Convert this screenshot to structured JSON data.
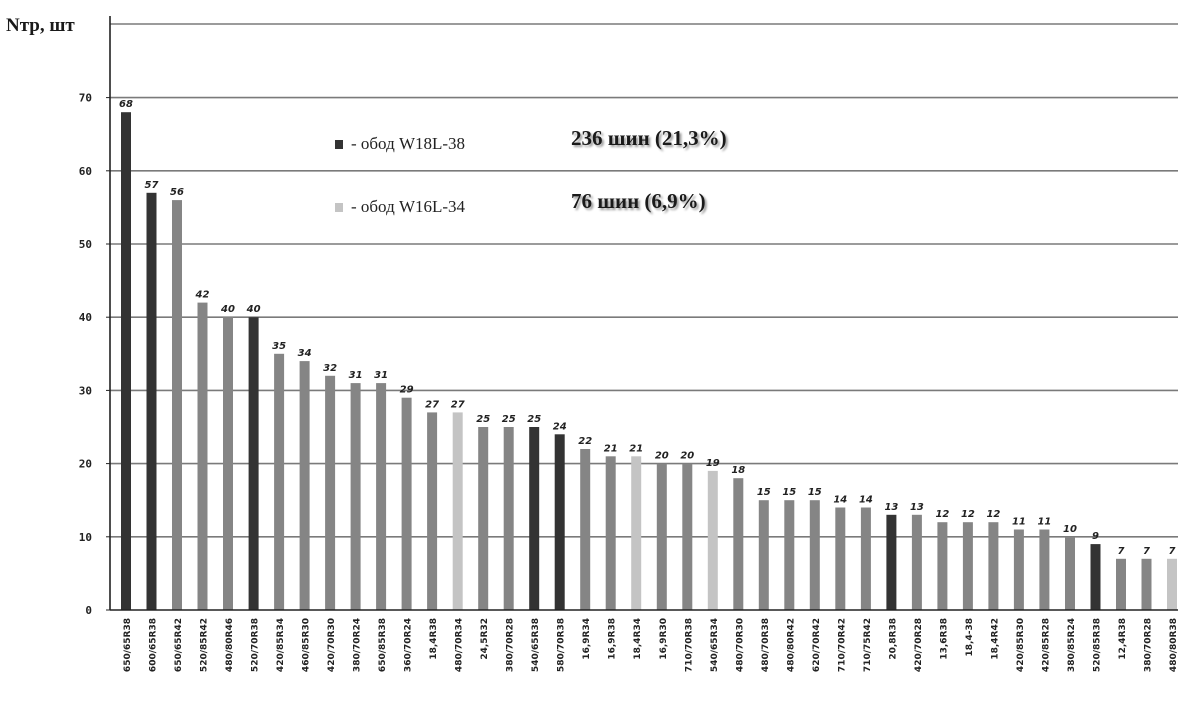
{
  "chart_data": {
    "type": "bar",
    "ylabel": "Nтр, шт",
    "ylim": [
      0,
      80
    ],
    "yticks": [
      0,
      10,
      20,
      30,
      40,
      50,
      60,
      70
    ],
    "grid": true,
    "categories": [
      "650/65R38",
      "600/65R38",
      "650/65R42",
      "520/85R42",
      "480/80R46",
      "520/70R38",
      "420/85R34",
      "460/85R30",
      "420/70R30",
      "380/70R24",
      "650/85R38",
      "360/70R24",
      "18,4R38",
      "480/70R34",
      "24,5R32",
      "380/70R28",
      "540/65R38",
      "580/70R38",
      "16,9R34",
      "16,9R38",
      "18,4R34",
      "16,9R30",
      "710/70R38",
      "540/65R34",
      "480/70R30",
      "480/70R38",
      "480/80R42",
      "620/70R42",
      "710/70R42",
      "710/75R42",
      "20,8R38",
      "420/70R28",
      "13,6R38",
      "18,4-38",
      "18,4R42",
      "420/85R30",
      "420/85R28",
      "380/85R24",
      "520/85R38",
      "12,4R38",
      "380/70R28",
      "480/80R38"
    ],
    "values": [
      68,
      57,
      56,
      42,
      40,
      40,
      35,
      34,
      32,
      31,
      31,
      29,
      27,
      27,
      25,
      25,
      25,
      24,
      22,
      21,
      21,
      20,
      20,
      19,
      18,
      15,
      15,
      15,
      14,
      14,
      13,
      13,
      12,
      12,
      12,
      11,
      11,
      10,
      9,
      7,
      7,
      7
    ],
    "rim_groups": [
      "W18L-38",
      "W18L-38",
      "other",
      "other",
      "other",
      "W18L-38",
      "other",
      "other",
      "other",
      "other",
      "other",
      "other",
      "other",
      "W16L-34",
      "other",
      "other",
      "W18L-38",
      "W18L-38",
      "other",
      "other",
      "W16L-34",
      "other",
      "other",
      "W16L-34",
      "other",
      "other",
      "other",
      "other",
      "other",
      "other",
      "W18L-38",
      "other",
      "other",
      "other",
      "other",
      "other",
      "other",
      "other",
      "W18L-38",
      "other",
      "other",
      "W16L-34"
    ],
    "data_labels": [
      "68",
      "57",
      "56",
      "42",
      "40",
      "40",
      "35",
      "34",
      "32",
      "31",
      "31",
      "29",
      "27",
      "27",
      "25",
      "25",
      "25",
      "24",
      "22",
      "21",
      "21",
      "20",
      "20",
      "19",
      "18",
      "15",
      "15",
      "15",
      "14",
      "14",
      "13",
      "13",
      "12",
      "12",
      "12",
      "11",
      "11",
      "10",
      "9",
      "7",
      "7",
      "7"
    ],
    "legend": {
      "placement": "top-center",
      "entries": [
        {
          "group": "W18L-38",
          "label": "- обод W18L-38",
          "count_text": "236 шин (21,3%)"
        },
        {
          "group": "W16L-34",
          "label": "- обод W16L-34",
          "count_text": "76 шин (6,9%)"
        }
      ]
    },
    "colors": {
      "W18L-38": "#333333",
      "W16L-34": "#c4c4c4",
      "other": "#858585",
      "grid": "#7a7a7a",
      "axis": "#222222"
    }
  }
}
